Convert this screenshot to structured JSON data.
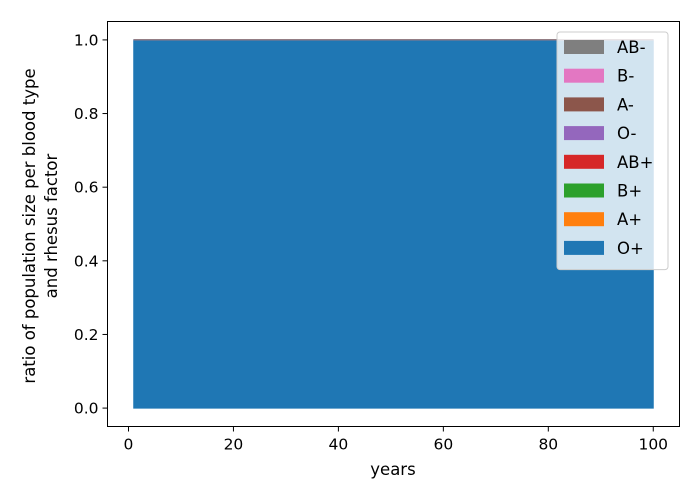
{
  "chart_data": {
    "type": "area",
    "stacked": true,
    "xlabel": "years",
    "ylabel_lines": [
      "ratio of population size per blood type",
      "and rhesus factor"
    ],
    "xlim": [
      -4,
      105
    ],
    "ylim": [
      -0.05,
      1.05
    ],
    "xticks": [
      0,
      20,
      40,
      60,
      80,
      100
    ],
    "xtick_labels": [
      "0",
      "20",
      "40",
      "60",
      "80",
      "100"
    ],
    "yticks": [
      0.0,
      0.2,
      0.4,
      0.6,
      0.8,
      1.0
    ],
    "ytick_labels": [
      "0.0",
      "0.2",
      "0.4",
      "0.6",
      "0.8",
      "1.0"
    ],
    "x": [
      1,
      100
    ],
    "series": [
      {
        "name": "O+",
        "color": "#1f77b4",
        "values": [
          1.0,
          1.0
        ]
      },
      {
        "name": "A+",
        "color": "#ff7f0e",
        "values": [
          0.0,
          0.0
        ]
      },
      {
        "name": "B+",
        "color": "#2ca02c",
        "values": [
          0.0,
          0.0
        ]
      },
      {
        "name": "AB+",
        "color": "#d62728",
        "values": [
          0.0,
          0.0
        ]
      },
      {
        "name": "O-",
        "color": "#9467bd",
        "values": [
          0.0,
          0.0
        ]
      },
      {
        "name": "A-",
        "color": "#8c564b",
        "values": [
          0.0,
          0.0
        ]
      },
      {
        "name": "B-",
        "color": "#e377c2",
        "values": [
          0.0,
          0.0
        ]
      },
      {
        "name": "AB-",
        "color": "#7f7f7f",
        "values": [
          0.0,
          0.0
        ]
      }
    ],
    "legend_order": [
      "AB-",
      "B-",
      "A-",
      "O-",
      "AB+",
      "B+",
      "A+",
      "O+"
    ],
    "legend_placement": "upper-right",
    "grid": false
  }
}
